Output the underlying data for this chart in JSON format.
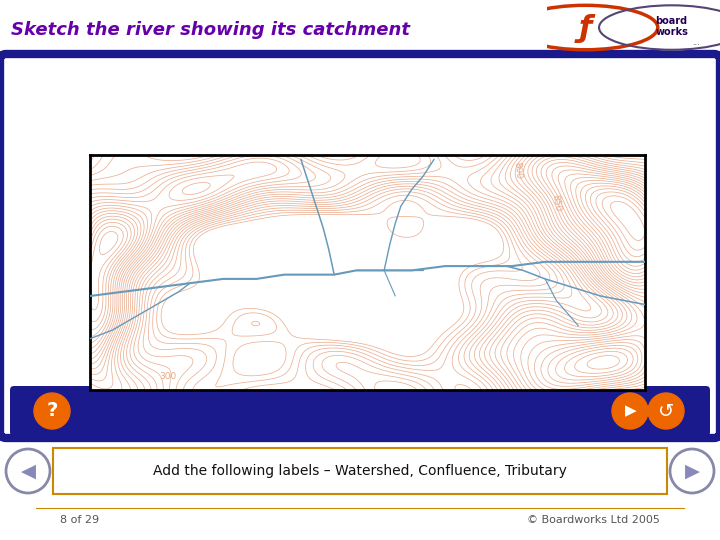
{
  "title": "Sketch the river showing its catchment",
  "title_color": "#6600AA",
  "title_bg": "#D8DFF0",
  "slide_bg": "#FFFFFF",
  "outer_frame_color": "#1a1a8c",
  "outer_frame_fill": "#FFFFFF",
  "map_bg": "#FFFFFF",
  "contour_color": "#E8A888",
  "river_color": "#6699BB",
  "footer_text": "Add the following labels – Watershed, Confluence, Tributary",
  "footer_border": "#CC8800",
  "footer_bg": "#FFFFFF",
  "bottom_text_left": "8 of 29",
  "bottom_text_right": "© Boardworks Ltd 2005",
  "button_color": "#EE6600",
  "nav_arrow_fill": "#AAAACC",
  "nav_arrow_edge": "#7777AA"
}
